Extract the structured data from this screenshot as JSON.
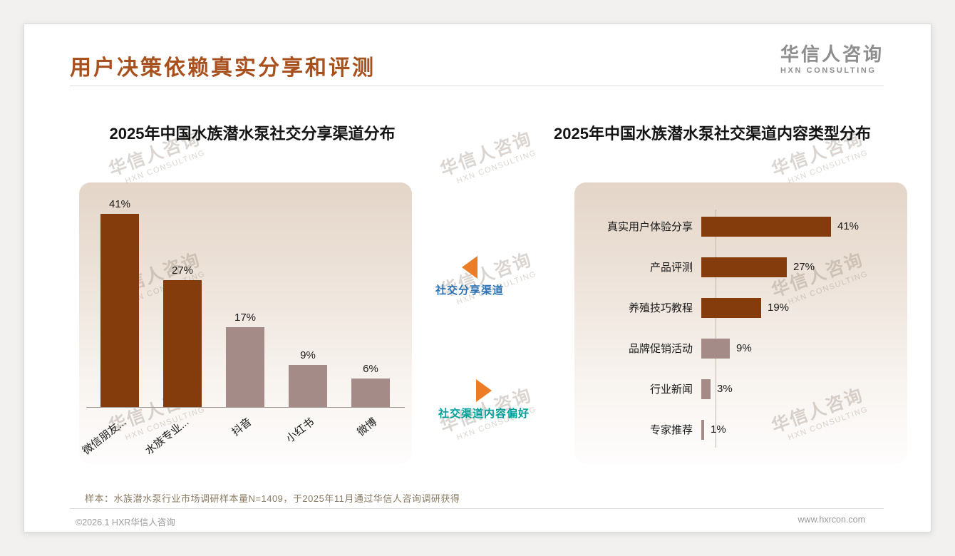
{
  "header": {
    "title": "用户决策依赖真实分享和评测",
    "logo_cn": "华信人咨询",
    "logo_en": "HXN CONSULTING"
  },
  "watermark": {
    "cn": "华信人咨询",
    "en": "HXN CONSULTING"
  },
  "annotations": {
    "sharing_channels": "社交分享渠道",
    "content_preference": "社交渠道内容偏好"
  },
  "chart_data": [
    {
      "type": "bar",
      "orientation": "vertical",
      "title": "2025年中国水族潜水泵社交分享渠道分布",
      "categories": [
        "微信朋友...",
        "水族专业...",
        "抖音",
        "小红书",
        "微博"
      ],
      "values": [
        41,
        27,
        17,
        9,
        6
      ],
      "unit": "%",
      "ylim": [
        0,
        45
      ],
      "grid": false,
      "legend": "none",
      "bar_colors": [
        "#843C0C",
        "#843C0C",
        "#A58B88",
        "#A58B88",
        "#A58B88"
      ]
    },
    {
      "type": "bar",
      "orientation": "horizontal",
      "title": "2025年中国水族潜水泵社交渠道内容类型分布",
      "categories": [
        "真实用户体验分享",
        "产品评测",
        "养殖技巧教程",
        "品牌促销活动",
        "行业新闻",
        "专家推荐"
      ],
      "values": [
        41,
        27,
        19,
        9,
        3,
        1
      ],
      "unit": "%",
      "xlim": [
        0,
        45
      ],
      "grid": false,
      "legend": "none",
      "bar_colors": [
        "#843C0C",
        "#843C0C",
        "#843C0C",
        "#A58B88",
        "#A58B88",
        "#A58B88"
      ]
    }
  ],
  "footnote": "样本：水族潜水泵行业市场调研样本量N=1409，于2025年11月通过华信人咨询调研获得",
  "footer": {
    "left": "©2026.1 HXR华信人咨询",
    "right": "www.hxrcon.com"
  },
  "colors": {
    "title": "#A8511F",
    "dark_bar": "#843C0C",
    "light_bar": "#A58B88",
    "annotation_blue": "#2E74B5",
    "annotation_teal": "#00A09A",
    "arrow_orange": "#EC7C26"
  }
}
